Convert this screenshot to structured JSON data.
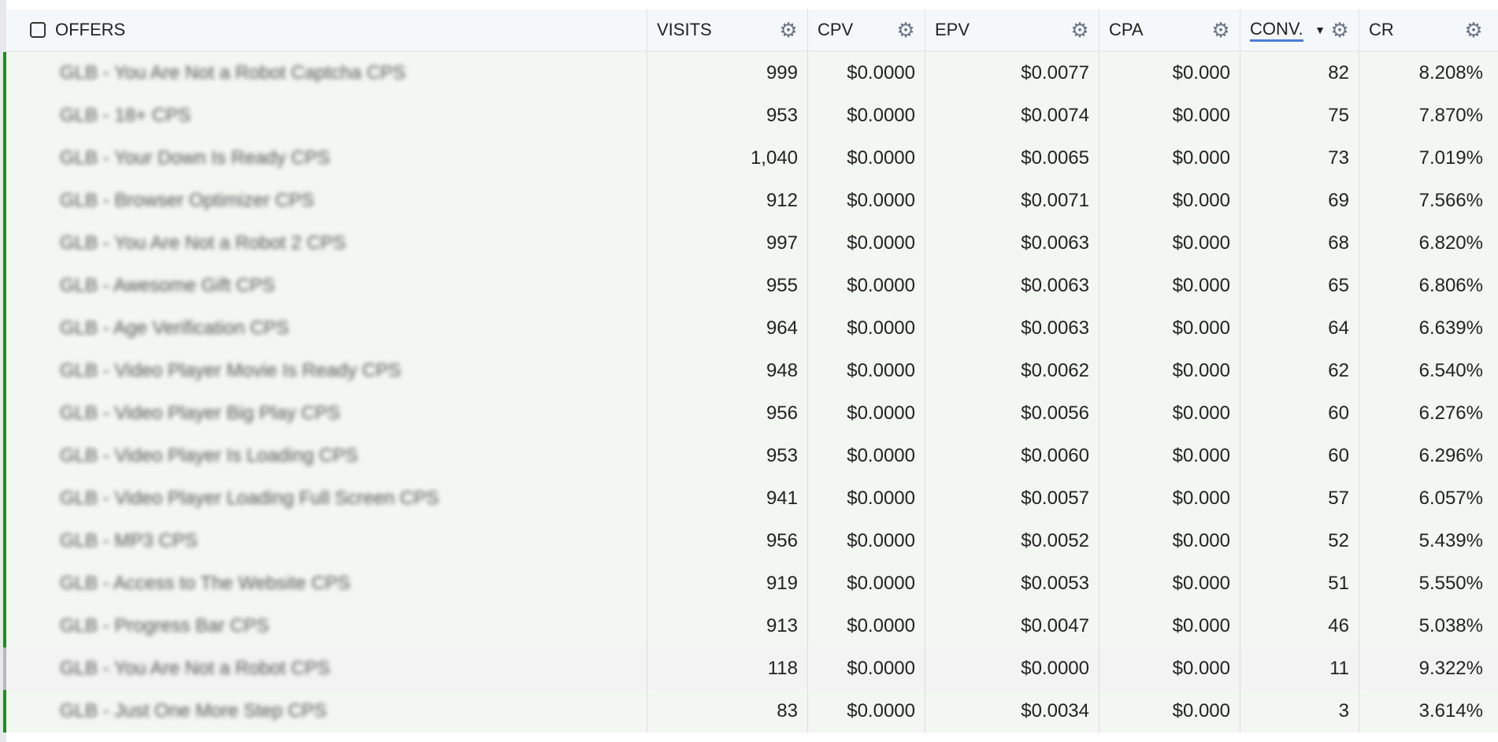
{
  "header": {
    "offers": "OFFERS",
    "visits": "VISITS",
    "cpv": "CPV",
    "epv": "EPV",
    "cpa": "CPA",
    "conv": "CONV.",
    "cr": "CR"
  },
  "sort": {
    "column": "CONV.",
    "direction": "descending"
  },
  "colors": {
    "active_row_border": "#1f8a22",
    "inactive_row_border": "#b8b8b8",
    "sort_underline": "#4a7fd4"
  },
  "rows": [
    {
      "name": "GLB - You Are Not a Robot Captcha CPS",
      "visits": "999",
      "cpv": "$0.0000",
      "epv": "$0.0077",
      "cpa": "$0.000",
      "conv": "82",
      "cr": "8.208%"
    },
    {
      "name": "GLB - 18+ CPS",
      "visits": "953",
      "cpv": "$0.0000",
      "epv": "$0.0074",
      "cpa": "$0.000",
      "conv": "75",
      "cr": "7.870%"
    },
    {
      "name": "GLB - Your Down Is Ready CPS",
      "visits": "1,040",
      "cpv": "$0.0000",
      "epv": "$0.0065",
      "cpa": "$0.000",
      "conv": "73",
      "cr": "7.019%"
    },
    {
      "name": "GLB - Browser Optimizer CPS",
      "visits": "912",
      "cpv": "$0.0000",
      "epv": "$0.0071",
      "cpa": "$0.000",
      "conv": "69",
      "cr": "7.566%"
    },
    {
      "name": "GLB - You Are Not a Robot 2 CPS",
      "visits": "997",
      "cpv": "$0.0000",
      "epv": "$0.0063",
      "cpa": "$0.000",
      "conv": "68",
      "cr": "6.820%"
    },
    {
      "name": "GLB - Awesome Gift CPS",
      "visits": "955",
      "cpv": "$0.0000",
      "epv": "$0.0063",
      "cpa": "$0.000",
      "conv": "65",
      "cr": "6.806%"
    },
    {
      "name": "GLB - Age Verification CPS",
      "visits": "964",
      "cpv": "$0.0000",
      "epv": "$0.0063",
      "cpa": "$0.000",
      "conv": "64",
      "cr": "6.639%"
    },
    {
      "name": "GLB - Video Player Movie Is Ready CPS",
      "visits": "948",
      "cpv": "$0.0000",
      "epv": "$0.0062",
      "cpa": "$0.000",
      "conv": "62",
      "cr": "6.540%"
    },
    {
      "name": "GLB - Video Player Big Play CPS",
      "visits": "956",
      "cpv": "$0.0000",
      "epv": "$0.0056",
      "cpa": "$0.000",
      "conv": "60",
      "cr": "6.276%"
    },
    {
      "name": "GLB - Video Player Is Loading CPS",
      "visits": "953",
      "cpv": "$0.0000",
      "epv": "$0.0060",
      "cpa": "$0.000",
      "conv": "60",
      "cr": "6.296%"
    },
    {
      "name": "GLB - Video Player Loading Full Screen CPS",
      "visits": "941",
      "cpv": "$0.0000",
      "epv": "$0.0057",
      "cpa": "$0.000",
      "conv": "57",
      "cr": "6.057%"
    },
    {
      "name": "GLB - MP3 CPS",
      "visits": "956",
      "cpv": "$0.0000",
      "epv": "$0.0052",
      "cpa": "$0.000",
      "conv": "52",
      "cr": "5.439%"
    },
    {
      "name": "GLB - Access to The Website CPS",
      "visits": "919",
      "cpv": "$0.0000",
      "epv": "$0.0053",
      "cpa": "$0.000",
      "conv": "51",
      "cr": "5.550%"
    },
    {
      "name": "GLB - Progress Bar CPS",
      "visits": "913",
      "cpv": "$0.0000",
      "epv": "$0.0047",
      "cpa": "$0.000",
      "conv": "46",
      "cr": "5.038%"
    },
    {
      "name": "GLB - You Are Not a Robot CPS",
      "visits": "118",
      "cpv": "$0.0000",
      "epv": "$0.0000",
      "cpa": "$0.000",
      "conv": "11",
      "cr": "9.322%",
      "inactive": true
    },
    {
      "name": "GLB - Just One More Step CPS",
      "visits": "83",
      "cpv": "$0.0000",
      "epv": "$0.0034",
      "cpa": "$0.000",
      "conv": "3",
      "cr": "3.614%"
    }
  ]
}
